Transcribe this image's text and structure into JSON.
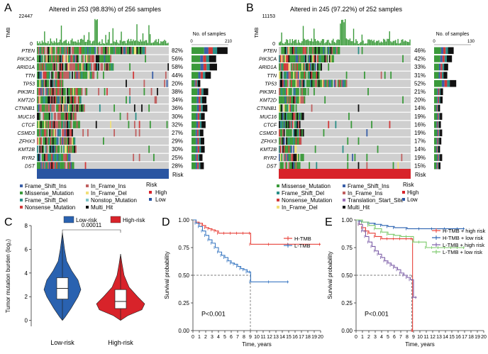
{
  "colors": {
    "Frame_Shift_Ins": "#3a5fa8",
    "Missense_Mutation": "#3a9a3a",
    "Frame_Shift_Del": "#2b8f88",
    "Nonsense_Mutation": "#d23a3a",
    "In_Frame_Ins": "#c06060",
    "In_Frame_Del": "#f2e07a",
    "Nonstop_Mutation": "#7cc4c8",
    "Multi_Hit": "#111111",
    "Translation_Start_Site": "#9b6fb8",
    "high": "#d8232a",
    "low": "#2a55a2",
    "grey": "#cfcfcf",
    "h_tmb": "#e8413a",
    "l_tmb": "#3a78c2",
    "hh": "#e8413a",
    "hl": "#2a62b0",
    "lh": "#7d5fa8",
    "ll": "#7bc96a"
  },
  "panelA": {
    "letter": "A",
    "title": "Altered in 253 (98.83%) of 256 samples",
    "tmb_max": "22447",
    "tmb_label": "TMB",
    "nsamples_label": "No. of samples",
    "axis_min": "0",
    "axis_max": "210",
    "risk_label": "Risk",
    "genes": [
      "PTEN",
      "PIK3CA",
      "ARID1A",
      "TTN",
      "TP53",
      "PIK3R1",
      "KMT2D",
      "CTNNB1",
      "MUC16",
      "CTCF",
      "CSMD3",
      "ZFHX3",
      "KMT2B",
      "RYR2",
      "DST"
    ],
    "pcts": [
      "82%",
      "56%",
      "58%",
      "44%",
      "20%",
      "38%",
      "34%",
      "36%",
      "30%",
      "32%",
      "27%",
      "29%",
      "30%",
      "25%",
      "28%"
    ],
    "legend": [
      {
        "label": "Frame_Shift_Ins",
        "key": "Frame_Shift_Ins"
      },
      {
        "label": "Missense_Mutation",
        "key": "Missense_Mutation"
      },
      {
        "label": "Frame_Shift_Del",
        "key": "Frame_Shift_Del"
      },
      {
        "label": "Nonsense_Mutation",
        "key": "Nonsense_Mutation"
      },
      {
        "label": "In_Frame_Ins",
        "key": "In_Frame_Ins"
      },
      {
        "label": "In_Frame_Del",
        "key": "In_Frame_Del"
      },
      {
        "label": "Nonstop_Mutation",
        "key": "Nonstop_Mutation"
      },
      {
        "label": "Multi_Hit",
        "key": "Multi_Hit"
      }
    ],
    "risk_legend": {
      "title": "Risk",
      "high": "High",
      "low": "Low"
    }
  },
  "panelB": {
    "letter": "B",
    "title": "Altered in 245 (97.22%) of 252 samples",
    "tmb_max": "11153",
    "tmb_label": "TMB",
    "nsamples_label": "No. of samples",
    "axis_min": "0",
    "axis_max": "130",
    "risk_label": "Risk",
    "genes": [
      "PTEN",
      "PIK3CA",
      "ARID1A",
      "TTN",
      "TP53",
      "PIK3R1",
      "KMT2D",
      "CTNNB1",
      "MUC16",
      "CTCF",
      "CSMD3",
      "ZFHX3",
      "KMT2B",
      "RYR2",
      "DST"
    ],
    "pcts": [
      "46%",
      "42%",
      "33%",
      "31%",
      "52%",
      "21%",
      "20%",
      "14%",
      "19%",
      "16%",
      "19%",
      "17%",
      "14%",
      "19%",
      "15%"
    ],
    "legend": [
      {
        "label": "Missense_Mutation",
        "key": "Missense_Mutation"
      },
      {
        "label": "Frame_Shift_Del",
        "key": "Frame_Shift_Del"
      },
      {
        "label": "Nonsense_Mutation",
        "key": "Nonsense_Mutation"
      },
      {
        "label": "In_Frame_Del",
        "key": "In_Frame_Del"
      },
      {
        "label": "Frame_Shift_Ins",
        "key": "Frame_Shift_Ins"
      },
      {
        "label": "In_Frame_Ins",
        "key": "In_Frame_Ins"
      },
      {
        "label": "Translation_Start_Site",
        "key": "Translation_Start_Site"
      },
      {
        "label": "Multi_Hit",
        "key": "Multi_Hit"
      }
    ],
    "risk_legend": {
      "title": "Risk",
      "high": "High",
      "low": "Low"
    }
  },
  "chart_data": [
    {
      "type": "table",
      "panel": "A",
      "title": "Altered in 253 (98.83%) of 256 samples",
      "genes": [
        "PTEN",
        "PIK3CA",
        "ARID1A",
        "TTN",
        "TP53",
        "PIK3R1",
        "KMT2D",
        "CTNNB1",
        "MUC16",
        "CTCF",
        "CSMD3",
        "ZFHX3",
        "KMT2B",
        "RYR2",
        "DST"
      ],
      "mutation_pct": [
        82,
        56,
        58,
        44,
        20,
        38,
        34,
        36,
        30,
        32,
        27,
        29,
        30,
        25,
        28
      ],
      "tmb_max": 22447,
      "n_samples_axis": [
        0,
        210
      ],
      "risk_group": "Low"
    },
    {
      "type": "table",
      "panel": "B",
      "title": "Altered in 245 (97.22%) of 252 samples",
      "genes": [
        "PTEN",
        "PIK3CA",
        "ARID1A",
        "TTN",
        "TP53",
        "PIK3R1",
        "KMT2D",
        "CTNNB1",
        "MUC16",
        "CTCF",
        "CSMD3",
        "ZFHX3",
        "KMT2B",
        "RYR2",
        "DST"
      ],
      "mutation_pct": [
        46,
        42,
        33,
        31,
        52,
        21,
        20,
        14,
        19,
        16,
        19,
        17,
        14,
        19,
        15
      ],
      "tmb_max": 11153,
      "n_samples_axis": [
        0,
        130
      ],
      "risk_group": "High"
    },
    {
      "type": "violin",
      "panel": "C",
      "letter": "C",
      "ylabel": "Tumor mutation burden (log₂)",
      "categories": [
        "Low-risk",
        "High-risk"
      ],
      "legend": [
        {
          "name": "Low-risk",
          "color": "#2a62b0"
        },
        {
          "name": "High-risk",
          "color": "#d8232a"
        }
      ],
      "pvalue": "0.00011",
      "ylim": [
        -0.5,
        8
      ],
      "yticks": [
        "0",
        "2",
        "4",
        "6",
        "8"
      ],
      "boxes": [
        {
          "name": "Low-risk",
          "q1": 1.8,
          "median": 2.7,
          "q3": 3.6,
          "min": 0,
          "max": 7.4
        },
        {
          "name": "High-risk",
          "q1": 1.0,
          "median": 1.6,
          "q3": 2.6,
          "min": 0,
          "max": 5.6
        }
      ]
    },
    {
      "type": "line",
      "panel": "D",
      "letter": "D",
      "xlabel": "Time, years",
      "ylabel": "Survival probability",
      "xlim": [
        0,
        20
      ],
      "ylim": [
        0,
        1
      ],
      "xticks": [
        "0",
        "1",
        "2",
        "3",
        "4",
        "5",
        "6",
        "7",
        "8",
        "9",
        "10",
        "11",
        "12",
        "13",
        "14",
        "15",
        "16",
        "17",
        "18",
        "19",
        "20"
      ],
      "yticks": [
        "0.00",
        "0.25",
        "0.50",
        "0.75",
        "1.00"
      ],
      "pvalue": "P<0.001",
      "median_x": 9.0,
      "series": [
        {
          "name": "H-TMB",
          "color": "#e8413a",
          "x": [
            0,
            0.5,
            1,
            1.5,
            2,
            2.5,
            3,
            3.5,
            4,
            5,
            6,
            7,
            8,
            9,
            9.05,
            12,
            15,
            20
          ],
          "y": [
            1,
            0.98,
            0.97,
            0.95,
            0.93,
            0.92,
            0.91,
            0.9,
            0.88,
            0.88,
            0.88,
            0.88,
            0.88,
            0.88,
            0.78,
            0.78,
            0.78,
            0.78
          ]
        },
        {
          "name": "L-TMB",
          "color": "#3a78c2",
          "x": [
            0,
            0.5,
            1,
            1.5,
            2,
            2.5,
            3,
            3.5,
            4,
            4.5,
            5,
            5.5,
            6,
            6.5,
            7,
            7.5,
            8,
            8.5,
            9,
            9.05,
            12,
            15
          ],
          "y": [
            1,
            0.97,
            0.94,
            0.9,
            0.86,
            0.82,
            0.79,
            0.75,
            0.71,
            0.68,
            0.66,
            0.63,
            0.61,
            0.6,
            0.58,
            0.56,
            0.55,
            0.53,
            0.53,
            0.44,
            0.44,
            0.44
          ]
        }
      ]
    },
    {
      "type": "line",
      "panel": "E",
      "letter": "E",
      "xlabel": "Time, years",
      "ylabel": "Survival probability",
      "xlim": [
        0,
        20
      ],
      "ylim": [
        0,
        1
      ],
      "xticks": [
        "0",
        "1",
        "2",
        "3",
        "4",
        "5",
        "6",
        "7",
        "8",
        "9",
        "10",
        "11",
        "12",
        "13",
        "14",
        "15",
        "16",
        "17",
        "18",
        "19",
        "20"
      ],
      "yticks": [
        "0.00",
        "0.25",
        "0.50",
        "0.75",
        "1.00"
      ],
      "pvalue": "P<0.001",
      "median_x": 8.7,
      "series": [
        {
          "name": "H-TMB + high risk",
          "color": "#e8413a",
          "x": [
            0,
            0.5,
            1,
            1.5,
            2,
            3,
            4,
            5,
            6,
            7,
            8,
            8.8,
            8.85,
            9
          ],
          "y": [
            1,
            0.96,
            0.93,
            0.9,
            0.88,
            0.85,
            0.83,
            0.83,
            0.83,
            0.83,
            0.83,
            0.83,
            0.0,
            0.0
          ]
        },
        {
          "name": "H-TMB + low risk",
          "color": "#2a62b0",
          "x": [
            0,
            0.5,
            1,
            2,
            3,
            4,
            5,
            6,
            8,
            10,
            12,
            14,
            16,
            17
          ],
          "y": [
            1,
            0.99,
            0.98,
            0.97,
            0.96,
            0.95,
            0.94,
            0.93,
            0.92,
            0.92,
            0.92,
            0.92,
            0.92,
            0.92
          ]
        },
        {
          "name": "L-TMB + high risk",
          "color": "#7d5fa8",
          "x": [
            0,
            0.5,
            1,
            1.5,
            2,
            2.5,
            3,
            3.5,
            4,
            4.5,
            5,
            5.5,
            6,
            6.5,
            7,
            7.5,
            8,
            8.5,
            9,
            9.5
          ],
          "y": [
            1,
            0.96,
            0.9,
            0.85,
            0.8,
            0.76,
            0.72,
            0.69,
            0.66,
            0.63,
            0.61,
            0.59,
            0.57,
            0.55,
            0.52,
            0.5,
            0.48,
            0.46,
            0.3,
            0.3
          ]
        },
        {
          "name": "L-TMB + low risk",
          "color": "#7bc96a",
          "x": [
            0,
            1,
            2,
            3,
            4,
            5,
            6,
            7,
            8,
            9,
            10,
            11,
            12,
            13,
            14,
            15,
            16,
            17
          ],
          "y": [
            1,
            0.98,
            0.95,
            0.92,
            0.89,
            0.87,
            0.86,
            0.85,
            0.85,
            0.8,
            0.8,
            0.75,
            0.75,
            0.75,
            0.75,
            0.75,
            0.75,
            0.75
          ]
        }
      ]
    }
  ]
}
